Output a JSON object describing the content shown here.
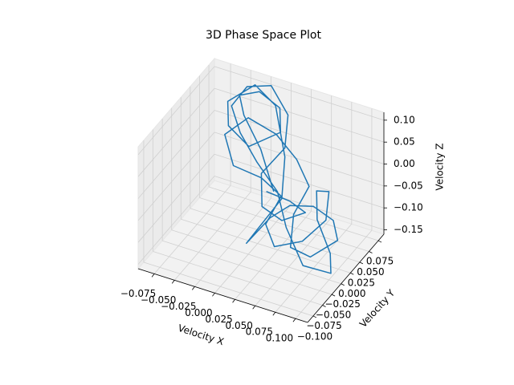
{
  "chart_data": {
    "type": "line3d",
    "title": "3D Phase Space Plot",
    "xlabel": "Velocity X",
    "ylabel": "Velocity Y",
    "zlabel": "Velocity Z",
    "color": "#1f77b4",
    "grid": true,
    "xlim": [
      -0.095,
      0.115
    ],
    "ylim": [
      -0.115,
      0.09
    ],
    "zlim": [
      -0.16,
      0.118
    ],
    "xticks": [
      {
        "value": -0.075,
        "label": "−0.075"
      },
      {
        "value": -0.05,
        "label": "−0.050"
      },
      {
        "value": -0.025,
        "label": "−0.025"
      },
      {
        "value": 0,
        "label": "0.000"
      },
      {
        "value": 0.025,
        "label": "0.025"
      },
      {
        "value": 0.05,
        "label": "0.050"
      },
      {
        "value": 0.075,
        "label": "0.075"
      },
      {
        "value": 0.1,
        "label": "0.100"
      }
    ],
    "yticks": [
      {
        "value": -0.1,
        "label": "−0.100"
      },
      {
        "value": -0.075,
        "label": "−0.075"
      },
      {
        "value": -0.05,
        "label": "−0.050"
      },
      {
        "value": -0.025,
        "label": "−0.025"
      },
      {
        "value": 0,
        "label": "0.000"
      },
      {
        "value": 0.025,
        "label": "0.025"
      },
      {
        "value": 0.05,
        "label": "0.050"
      },
      {
        "value": 0.075,
        "label": "0.075"
      }
    ],
    "zticks": [
      {
        "value": -0.15,
        "label": "−0.15"
      },
      {
        "value": -0.1,
        "label": "−0.10"
      },
      {
        "value": -0.05,
        "label": "−0.05"
      },
      {
        "value": 0,
        "label": "0.00"
      },
      {
        "value": 0.05,
        "label": "0.05"
      },
      {
        "value": 0.1,
        "label": "0.10"
      }
    ],
    "x": [
      0.02,
      -0.01,
      -0.04,
      -0.05,
      -0.03,
      0.0,
      0.01,
      -0.02,
      -0.05,
      -0.06,
      -0.04,
      -0.01,
      0.02,
      0.03,
      0.01,
      0.0,
      0.02,
      0.04,
      0.06,
      0.08,
      0.09,
      0.07,
      0.05,
      0.04,
      0.05,
      0.03,
      0.0,
      -0.03,
      -0.05,
      -0.03,
      0.0,
      0.02,
      0.01,
      0.03,
      0.06,
      0.08,
      0.07,
      0.05,
      0.06,
      0.09,
      0.1,
      0.07,
      0.04,
      0.02,
      -0.01,
      -0.04,
      -0.06,
      -0.05,
      -0.02,
      0.01,
      0.02,
      0.0,
      0.01,
      0.03,
      0.05,
      0.04,
      0.02
    ],
    "y": [
      0.0,
      0.03,
      0.05,
      0.06,
      0.07,
      0.06,
      0.04,
      0.02,
      0.03,
      0.05,
      0.08,
      0.07,
      0.03,
      0.0,
      -0.02,
      -0.03,
      -0.01,
      0.0,
      0.02,
      0.03,
      0.02,
      -0.01,
      -0.02,
      0.01,
      0.03,
      0.04,
      0.05,
      0.04,
      0.02,
      0.0,
      0.01,
      0.02,
      0.0,
      -0.02,
      -0.01,
      0.01,
      0.04,
      0.05,
      0.03,
      0.0,
      -0.02,
      -0.03,
      -0.01,
      0.01,
      0.02,
      0.04,
      0.06,
      0.08,
      0.08,
      0.06,
      0.03,
      0.01,
      -0.01,
      0.0,
      0.02,
      0.0,
      -0.02
    ],
    "z": [
      -0.03,
      0.02,
      0.06,
      0.09,
      0.1,
      0.09,
      0.06,
      0.03,
      0.05,
      0.08,
      0.1,
      0.08,
      0.02,
      -0.04,
      -0.1,
      -0.13,
      -0.08,
      -0.05,
      -0.06,
      -0.09,
      -0.12,
      -0.14,
      -0.12,
      -0.08,
      -0.03,
      0.01,
      0.04,
      0.07,
      0.04,
      0.0,
      -0.02,
      -0.06,
      -0.11,
      -0.13,
      -0.11,
      -0.07,
      -0.04,
      -0.06,
      -0.1,
      -0.13,
      -0.15,
      -0.14,
      -0.09,
      -0.04,
      0.0,
      0.03,
      0.06,
      0.09,
      0.11,
      0.08,
      0.04,
      -0.01,
      -0.06,
      -0.09,
      -0.08,
      -0.04,
      -0.01
    ]
  }
}
